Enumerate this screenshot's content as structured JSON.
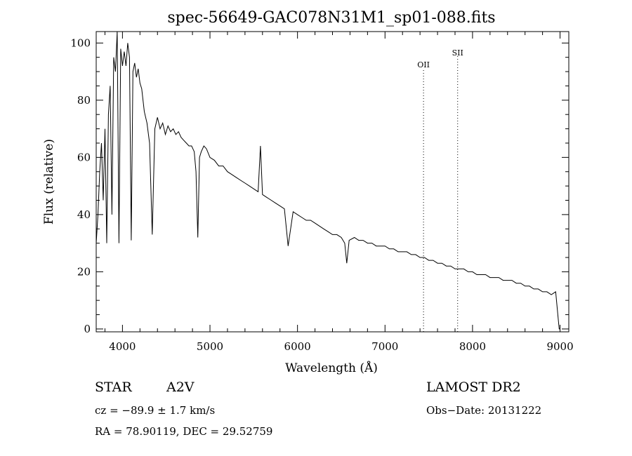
{
  "chart_data": {
    "type": "line",
    "title": "spec-56649-GAC078N31M1_sp01-088.fits",
    "xlabel": "Wavelength (Å)",
    "ylabel": "Flux (relative)",
    "xlim": [
      3700,
      9100
    ],
    "ylim": [
      -1,
      104
    ],
    "xticks": [
      4000,
      5000,
      6000,
      7000,
      8000,
      9000
    ],
    "xtick_labels": [
      "4000",
      "5000",
      "6000",
      "7000",
      "8000",
      "9000"
    ],
    "yticks": [
      0,
      20,
      40,
      60,
      80,
      100
    ],
    "ytick_labels": [
      "0",
      "20",
      "40",
      "60",
      "80",
      "100"
    ],
    "grid": false,
    "series": [
      {
        "color": "#000000",
        "x": [
          3700,
          3720,
          3740,
          3760,
          3780,
          3800,
          3820,
          3840,
          3860,
          3880,
          3900,
          3920,
          3940,
          3960,
          3980,
          4000,
          4020,
          4040,
          4060,
          4080,
          4100,
          4120,
          4140,
          4160,
          4180,
          4200,
          4220,
          4250,
          4280,
          4310,
          4340,
          4370,
          4400,
          4430,
          4460,
          4490,
          4520,
          4550,
          4580,
          4610,
          4640,
          4670,
          4700,
          4730,
          4760,
          4790,
          4820,
          4840,
          4861,
          4880,
          4900,
          4930,
          4960,
          5000,
          5050,
          5100,
          5150,
          5200,
          5250,
          5300,
          5350,
          5400,
          5450,
          5500,
          5550,
          5577,
          5600,
          5650,
          5700,
          5750,
          5800,
          5850,
          5893,
          5950,
          6000,
          6050,
          6100,
          6150,
          6200,
          6250,
          6300,
          6350,
          6400,
          6450,
          6500,
          6540,
          6563,
          6590,
          6650,
          6700,
          6750,
          6800,
          6850,
          6900,
          6950,
          7000,
          7050,
          7100,
          7150,
          7200,
          7250,
          7300,
          7350,
          7400,
          7450,
          7500,
          7550,
          7600,
          7650,
          7700,
          7750,
          7800,
          7850,
          7900,
          7950,
          8000,
          8050,
          8100,
          8150,
          8200,
          8250,
          8300,
          8350,
          8400,
          8450,
          8500,
          8550,
          8600,
          8650,
          8700,
          8750,
          8800,
          8850,
          8900,
          8950,
          8990,
          9000
        ],
        "y": [
          30,
          40,
          55,
          65,
          45,
          70,
          30,
          75,
          85,
          40,
          95,
          90,
          104,
          30,
          98,
          92,
          97,
          92,
          100,
          95,
          31,
          90,
          93,
          88,
          91,
          86,
          84,
          76,
          72,
          65,
          33,
          70,
          74,
          70,
          72,
          68,
          71,
          69,
          70,
          68,
          69,
          67,
          66,
          65,
          64,
          64,
          62,
          55,
          32,
          60,
          62,
          64,
          63,
          60,
          59,
          57,
          57,
          55,
          54,
          53,
          52,
          51,
          50,
          49,
          48,
          64,
          47,
          46,
          45,
          44,
          43,
          42,
          29,
          41,
          40,
          39,
          38,
          38,
          37,
          36,
          35,
          34,
          33,
          33,
          32,
          30,
          23,
          31,
          32,
          31,
          31,
          30,
          30,
          29,
          29,
          29,
          28,
          28,
          27,
          27,
          27,
          26,
          26,
          25,
          25,
          24,
          24,
          23,
          23,
          22,
          22,
          21,
          21,
          21,
          20,
          20,
          19,
          19,
          19,
          18,
          18,
          18,
          17,
          17,
          17,
          16,
          16,
          15,
          15,
          14,
          14,
          13,
          13,
          12,
          13,
          0,
          0
        ]
      }
    ],
    "line_markers": [
      {
        "x": 7440,
        "label": "OII"
      },
      {
        "x": 7830,
        "label": "SII"
      }
    ]
  },
  "info": {
    "object_class": "STAR",
    "subclass": "A2V",
    "survey": "LAMOST DR2",
    "cz": "cz = −89.9 ± 1.7 km/s",
    "obs_date": "Obs−Date: 20131222",
    "coords": "RA =  78.90119, DEC =  29.52759"
  }
}
